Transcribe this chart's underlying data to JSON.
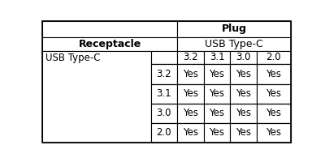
{
  "title": "Plug",
  "plug_subtitle": "USB Type-C",
  "receptacle_label": "Receptacle",
  "receptacle_value": "USB Type-C",
  "plug_versions": [
    "3.2",
    "3.1",
    "3.0",
    "2.0"
  ],
  "receptacle_versions": [
    "3.2",
    "3.1",
    "3.0",
    "2.0"
  ],
  "cell_value": "Yes",
  "bg_color": "#ffffff",
  "border_color": "#000000",
  "text_color": "#000000",
  "header_fontsize": 9,
  "cell_fontsize": 8.5
}
